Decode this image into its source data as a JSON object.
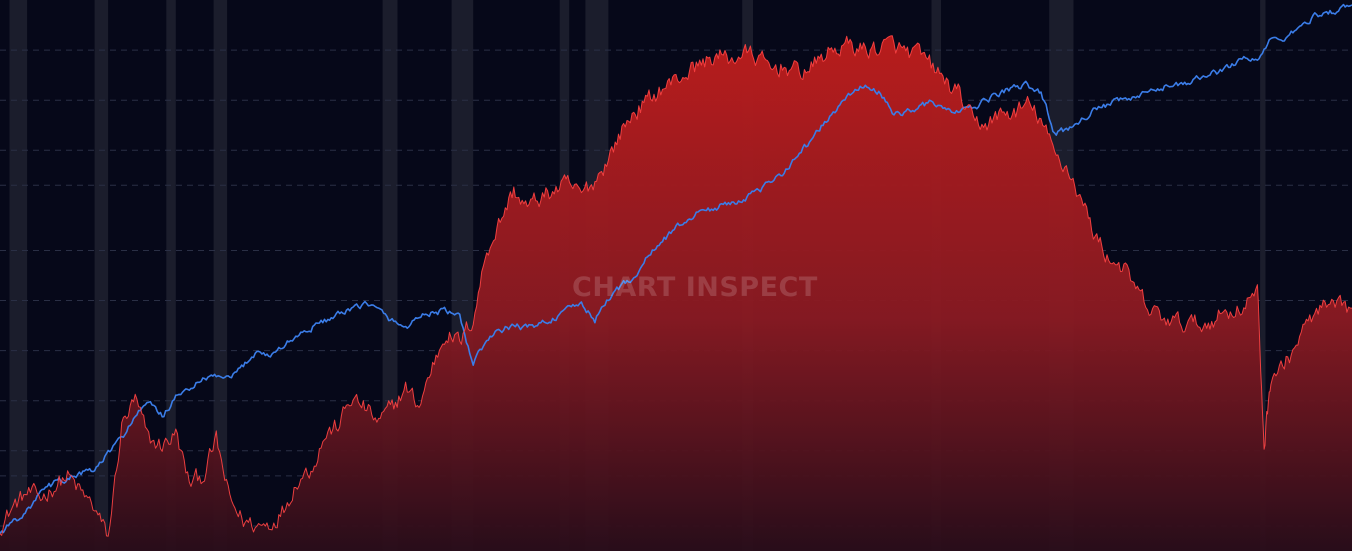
{
  "watermark": "CHART INSPECT",
  "chart_data": {
    "type": "area",
    "title": "",
    "xlabel": "",
    "ylabel": "",
    "x_range": [
      0,
      100
    ],
    "grid": {
      "horizontal": true,
      "vertical": false,
      "style": "dashed"
    },
    "legend": "none",
    "colors": {
      "background": "#060819",
      "series_a": "#3b7de8",
      "series_b_line": "#ff4444",
      "series_b_fill_top": "#b81c1c",
      "series_b_fill_bottom": "#2a0d1a",
      "shading": "#ffffff",
      "grid": "#2a2f45"
    },
    "shaded_periods": [
      [
        0.7,
        2.0
      ],
      [
        7.0,
        8.0
      ],
      [
        12.3,
        13.0
      ],
      [
        15.8,
        16.8
      ],
      [
        28.3,
        29.4
      ],
      [
        33.4,
        35.0
      ],
      [
        41.4,
        42.1
      ],
      [
        43.3,
        45.0
      ],
      [
        54.9,
        55.7
      ],
      [
        68.9,
        69.6
      ],
      [
        77.6,
        79.4
      ],
      [
        93.2,
        93.6
      ]
    ],
    "gridlines_y": [
      5,
      15,
      20,
      30,
      40,
      50,
      60,
      73,
      80,
      90,
      100
    ],
    "series": [
      {
        "style": "line",
        "x": [
          0,
          1,
          2,
          3,
          4,
          5,
          6,
          7,
          8,
          9,
          10,
          11,
          12,
          13,
          14,
          15,
          16,
          17,
          18,
          19,
          20,
          21,
          22,
          23,
          24,
          25,
          26,
          27,
          28,
          29,
          30,
          31,
          32,
          33,
          34,
          35,
          36,
          37,
          38,
          39,
          40,
          41,
          42,
          43,
          44,
          45,
          46,
          47,
          48,
          49,
          50,
          51,
          52,
          53,
          54,
          55,
          56,
          57,
          58,
          59,
          60,
          61,
          62,
          63,
          64,
          65,
          66,
          67,
          68,
          69,
          70,
          71,
          72,
          73,
          74,
          75,
          76,
          77,
          78,
          79,
          80,
          81,
          82,
          83,
          84,
          85,
          86,
          87,
          88,
          89,
          90,
          91,
          92,
          93,
          94,
          95,
          96,
          97,
          98,
          99,
          100
        ],
        "values": [
          3.5,
          6.0,
          8.0,
          11.5,
          13.5,
          14.5,
          15.5,
          16.0,
          19.5,
          22.5,
          27.0,
          29.5,
          27.0,
          30.5,
          32.5,
          34.0,
          35.0,
          34.0,
          37.0,
          40.0,
          39.0,
          41.0,
          43.0,
          44.5,
          46.0,
          47.0,
          48.0,
          49.5,
          48.0,
          46.0,
          44.5,
          47.0,
          47.5,
          48.0,
          46.5,
          37.5,
          42.0,
          44.0,
          45.0,
          44.5,
          45.5,
          46.5,
          48.0,
          49.5,
          46.0,
          50.5,
          53.0,
          55.0,
          59.0,
          62.0,
          64.5,
          66.5,
          68.0,
          68.5,
          69.5,
          70.5,
          71.5,
          73.5,
          76.0,
          79.0,
          82.0,
          85.5,
          88.5,
          91.5,
          93.0,
          91.5,
          87.5,
          87.5,
          89.0,
          89.5,
          88.0,
          87.5,
          88.5,
          90.0,
          91.5,
          92.5,
          93.0,
          91.5,
          83.5,
          84.0,
          86.5,
          88.0,
          89.0,
          90.0,
          90.5,
          91.5,
          92.5,
          93.5,
          93.0,
          95.0,
          95.5,
          97.0,
          98.5,
          98.0,
          102.0,
          102.5,
          104.0,
          106.5,
          107.5,
          108.0,
          109.0
        ]
      },
      {
        "style": "area",
        "x": [
          0,
          1,
          2,
          3,
          4,
          5,
          6,
          7,
          8,
          9,
          10,
          11,
          12,
          13,
          14,
          15,
          16,
          17,
          18,
          19,
          20,
          21,
          22,
          23,
          24,
          25,
          26,
          27,
          28,
          29,
          30,
          31,
          32,
          33,
          34,
          35,
          36,
          37,
          38,
          39,
          40,
          41,
          42,
          43,
          44,
          45,
          46,
          47,
          48,
          49,
          50,
          51,
          52,
          53,
          54,
          55,
          56,
          57,
          58,
          59,
          60,
          61,
          62,
          63,
          64,
          65,
          66,
          67,
          68,
          69,
          70,
          71,
          72,
          73,
          74,
          75,
          76,
          77,
          78,
          79,
          80,
          81,
          82,
          83,
          84,
          85,
          86,
          87,
          88,
          89,
          90,
          91,
          92,
          93,
          93.5,
          94,
          95,
          96,
          97,
          98,
          99,
          100
        ],
        "values": [
          5.0,
          9.0,
          11.5,
          10.5,
          13.0,
          15.0,
          11.5,
          8.5,
          2.5,
          25.0,
          30.0,
          22.0,
          21.0,
          23.5,
          13.5,
          15.0,
          22.0,
          10.0,
          6.0,
          5.0,
          5.5,
          8.5,
          14.5,
          16.5,
          23.0,
          25.0,
          30.5,
          28.5,
          25.5,
          28.5,
          32.5,
          29.0,
          37.0,
          44.0,
          41.5,
          46.5,
          60.0,
          66.0,
          72.0,
          68.5,
          70.5,
          72.0,
          73.0,
          71.0,
          74.0,
          78.5,
          84.0,
          88.0,
          90.0,
          92.5,
          94.0,
          96.0,
          97.5,
          99.0,
          98.0,
          99.5,
          98.5,
          96.0,
          97.0,
          95.5,
          96.5,
          99.0,
          100.5,
          101.0,
          100.0,
          100.5,
          101.0,
          99.5,
          99.0,
          96.5,
          93.5,
          91.0,
          85.0,
          85.5,
          87.0,
          87.5,
          89.0,
          86.0,
          79.0,
          76.5,
          70.0,
          63.0,
          58.5,
          57.0,
          52.0,
          48.0,
          46.5,
          45.5,
          45.5,
          45.0,
          47.0,
          48.0,
          49.0,
          52.0,
          21.0,
          35.0,
          37.0,
          42.0,
          46.5,
          48.5,
          48.0,
          48.5
        ]
      }
    ],
    "y_range": [
      0,
      110
    ]
  }
}
